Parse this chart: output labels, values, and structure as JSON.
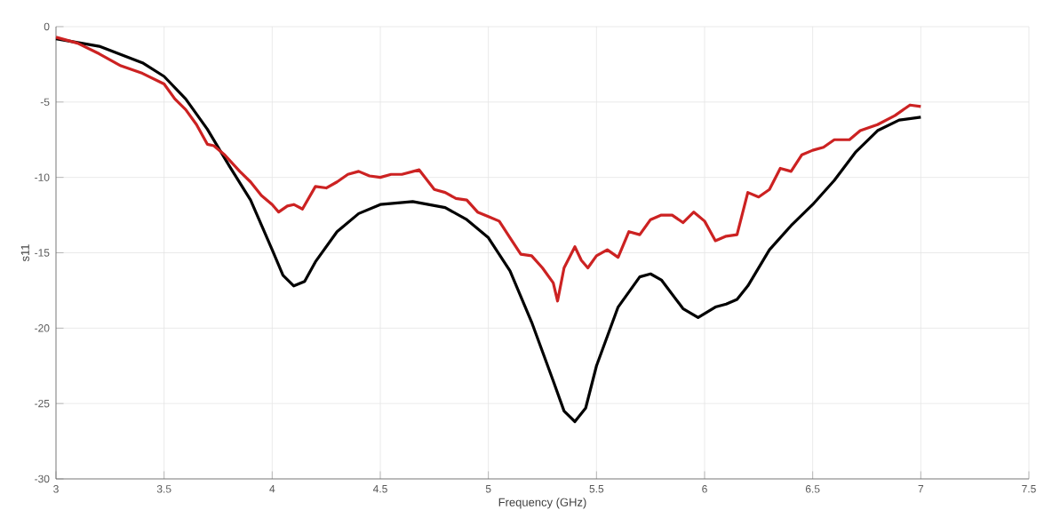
{
  "chart_data": {
    "type": "line",
    "xlabel": "Frequency (GHz)",
    "ylabel": "s11",
    "xlim": [
      3,
      7.5
    ],
    "ylim": [
      -30,
      0
    ],
    "xticks": [
      3,
      3.5,
      4,
      4.5,
      5,
      5.5,
      6,
      6.5,
      7,
      7.5
    ],
    "yticks": [
      -30,
      -25,
      -20,
      -15,
      -10,
      -5,
      0
    ],
    "grid": true,
    "line_style": "solid",
    "series": [
      {
        "color": "#000000",
        "x": [
          3,
          3.2,
          3.4,
          3.5,
          3.6,
          3.7,
          3.8,
          3.9,
          4.0,
          4.05,
          4.1,
          4.15,
          4.2,
          4.3,
          4.4,
          4.5,
          4.65,
          4.8,
          4.9,
          5.0,
          5.1,
          5.2,
          5.3,
          5.35,
          5.4,
          5.45,
          5.5,
          5.6,
          5.7,
          5.75,
          5.8,
          5.9,
          5.97,
          6.05,
          6.1,
          6.15,
          6.2,
          6.3,
          6.4,
          6.5,
          6.6,
          6.7,
          6.8,
          6.9,
          7.0
        ],
        "values": [
          -0.8,
          -1.3,
          -2.4,
          -3.3,
          -4.8,
          -6.8,
          -9.2,
          -11.5,
          -14.8,
          -16.5,
          -17.2,
          -16.9,
          -15.6,
          -13.6,
          -12.4,
          -11.8,
          -11.6,
          -12,
          -12.8,
          -14,
          -16.2,
          -19.6,
          -23.5,
          -25.5,
          -26.2,
          -25.3,
          -22.5,
          -18.6,
          -16.6,
          -16.4,
          -16.8,
          -18.7,
          -19.3,
          -18.6,
          -18.4,
          -18.1,
          -17.2,
          -14.8,
          -13.2,
          -11.8,
          -10.2,
          -8.3,
          -6.9,
          -6.2,
          -6.0
        ]
      },
      {
        "color": "#cc2222",
        "x": [
          3.0,
          3.1,
          3.2,
          3.25,
          3.3,
          3.4,
          3.5,
          3.55,
          3.6,
          3.65,
          3.7,
          3.73,
          3.78,
          3.85,
          3.9,
          3.95,
          4.0,
          4.03,
          4.07,
          4.1,
          4.14,
          4.2,
          4.25,
          4.3,
          4.35,
          4.4,
          4.45,
          4.5,
          4.55,
          4.6,
          4.68,
          4.75,
          4.8,
          4.85,
          4.9,
          4.95,
          5.0,
          5.05,
          5.1,
          5.15,
          5.2,
          5.25,
          5.3,
          5.32,
          5.35,
          5.4,
          5.43,
          5.46,
          5.5,
          5.55,
          5.6,
          5.65,
          5.7,
          5.75,
          5.8,
          5.85,
          5.9,
          5.95,
          6.0,
          6.05,
          6.1,
          6.15,
          6.2,
          6.25,
          6.3,
          6.35,
          6.4,
          6.45,
          6.5,
          6.55,
          6.6,
          6.67,
          6.72,
          6.8,
          6.88,
          6.95,
          7.0
        ],
        "values": [
          -0.7,
          -1.1,
          -1.8,
          -2.2,
          -2.6,
          -3.1,
          -3.8,
          -4.8,
          -5.5,
          -6.5,
          -7.8,
          -7.9,
          -8.5,
          -9.6,
          -10.3,
          -11.2,
          -11.8,
          -12.3,
          -11.9,
          -11.8,
          -12.1,
          -10.6,
          -10.7,
          -10.3,
          -9.8,
          -9.6,
          -9.9,
          -10.0,
          -9.8,
          -9.8,
          -9.5,
          -10.8,
          -11.0,
          -11.4,
          -11.5,
          -12.3,
          -12.6,
          -12.9,
          -14.0,
          -15.1,
          -15.2,
          -16.0,
          -17.0,
          -18.2,
          -16.0,
          -14.6,
          -15.5,
          -16.0,
          -15.2,
          -14.8,
          -15.3,
          -13.6,
          -13.8,
          -12.8,
          -12.5,
          -12.5,
          -13.0,
          -12.3,
          -12.9,
          -14.2,
          -13.9,
          -13.8,
          -11.0,
          -11.3,
          -10.8,
          -9.4,
          -9.6,
          -8.5,
          -8.2,
          -8.0,
          -7.5,
          -7.5,
          -6.9,
          -6.5,
          -5.9,
          -5.2,
          -5.3
        ]
      }
    ]
  }
}
